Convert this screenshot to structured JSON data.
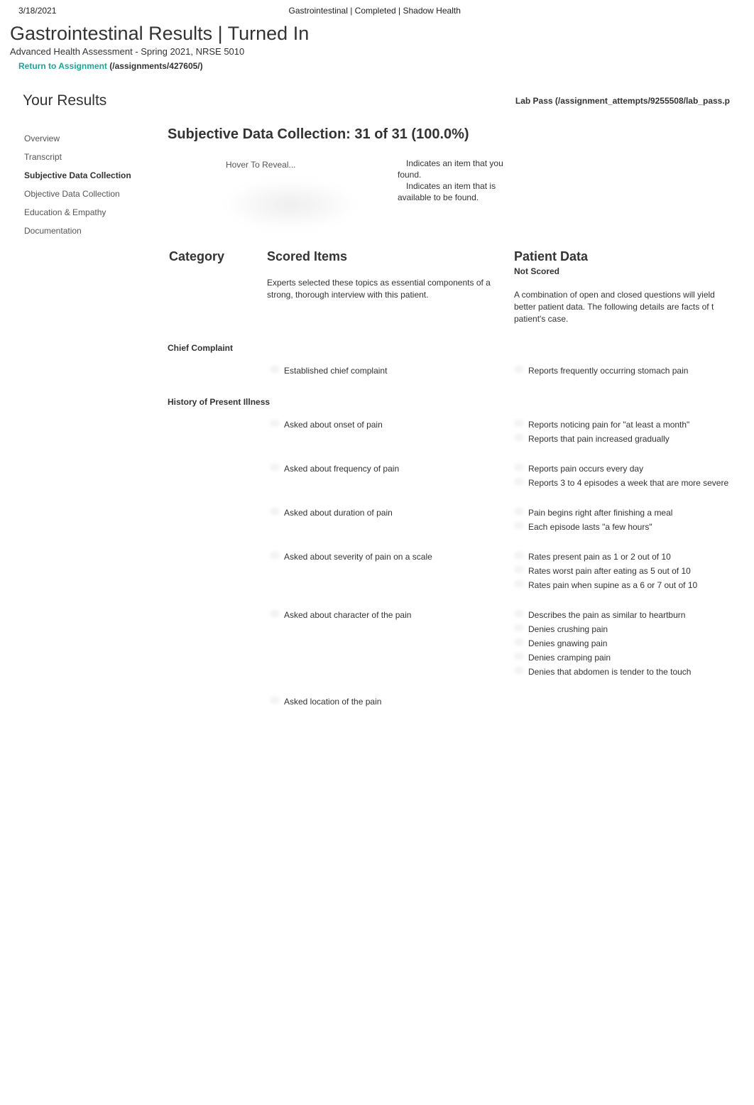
{
  "meta": {
    "date": "3/18/2021",
    "header_center": "Gastrointestinal | Completed | Shadow Health"
  },
  "page": {
    "title": "Gastrointestinal Results | Turned In",
    "course": "Advanced Health Assessment - Spring 2021, NRSE 5010",
    "return_label": "Return to Assignment",
    "return_path": " (/assignments/427605/)"
  },
  "results_header": {
    "title": "Your Results",
    "lab_pass": "Lab Pass (/assignment_attempts/9255508/lab_pass.p"
  },
  "sidebar": {
    "items": [
      {
        "label": "Overview",
        "active": false
      },
      {
        "label": "Transcript",
        "active": false
      },
      {
        "label": "Subjective Data Collection",
        "active": true
      },
      {
        "label": "Objective Data Collection",
        "active": false
      },
      {
        "label": "Education & Empathy",
        "active": false
      },
      {
        "label": "Documentation",
        "active": false
      }
    ]
  },
  "main": {
    "section_title": "Subjective Data Collection: 31 of 31 (100.0%)",
    "hover_text": "Hover To Reveal...",
    "legend_found_pre": "Indicates an item that you",
    "legend_found_post": "found.",
    "legend_avail_pre": "Indicates an item that is",
    "legend_avail_post": "available to be found.",
    "columns": {
      "category": "Category",
      "scored": "Scored Items",
      "patient": "Patient Data",
      "not_scored": "Not Scored",
      "scored_desc": "Experts selected these topics as essential components of a strong, thorough interview with this patient.",
      "patient_desc": "A combination of open and closed questions will yield better patient data. The following details are facts of t patient's case."
    },
    "categories": [
      {
        "name": "Chief Complaint",
        "rows": [
          {
            "scored": [
              "Established chief complaint"
            ],
            "patient": [
              "Reports frequently occurring stomach pain"
            ]
          }
        ]
      },
      {
        "name": "History of Present Illness",
        "rows": [
          {
            "scored": [
              "Asked about onset of pain"
            ],
            "patient": [
              "Reports noticing pain for \"at least a month\"",
              "Reports that pain increased gradually"
            ]
          },
          {
            "scored": [
              "Asked about frequency of pain"
            ],
            "patient": [
              "Reports pain occurs every day",
              "Reports 3 to 4 episodes a week that are more severe"
            ]
          },
          {
            "scored": [
              "Asked about duration of pain"
            ],
            "patient": [
              "Pain begins right after finishing a meal",
              "Each episode lasts \"a few hours\""
            ]
          },
          {
            "scored": [
              "Asked about severity of pain on a scale"
            ],
            "patient": [
              "Rates present pain as 1 or 2 out of 10",
              "Rates worst pain after eating as 5 out of 10",
              "Rates pain when supine as a 6 or 7 out of 10"
            ]
          },
          {
            "scored": [
              "Asked about character of the pain"
            ],
            "patient": [
              "Describes the pain as similar to heartburn",
              "Denies crushing pain",
              "Denies gnawing pain",
              "Denies cramping pain",
              "Denies that abdomen is tender to the touch"
            ]
          },
          {
            "scored": [
              "Asked location of the pain"
            ],
            "patient": []
          }
        ]
      }
    ]
  }
}
